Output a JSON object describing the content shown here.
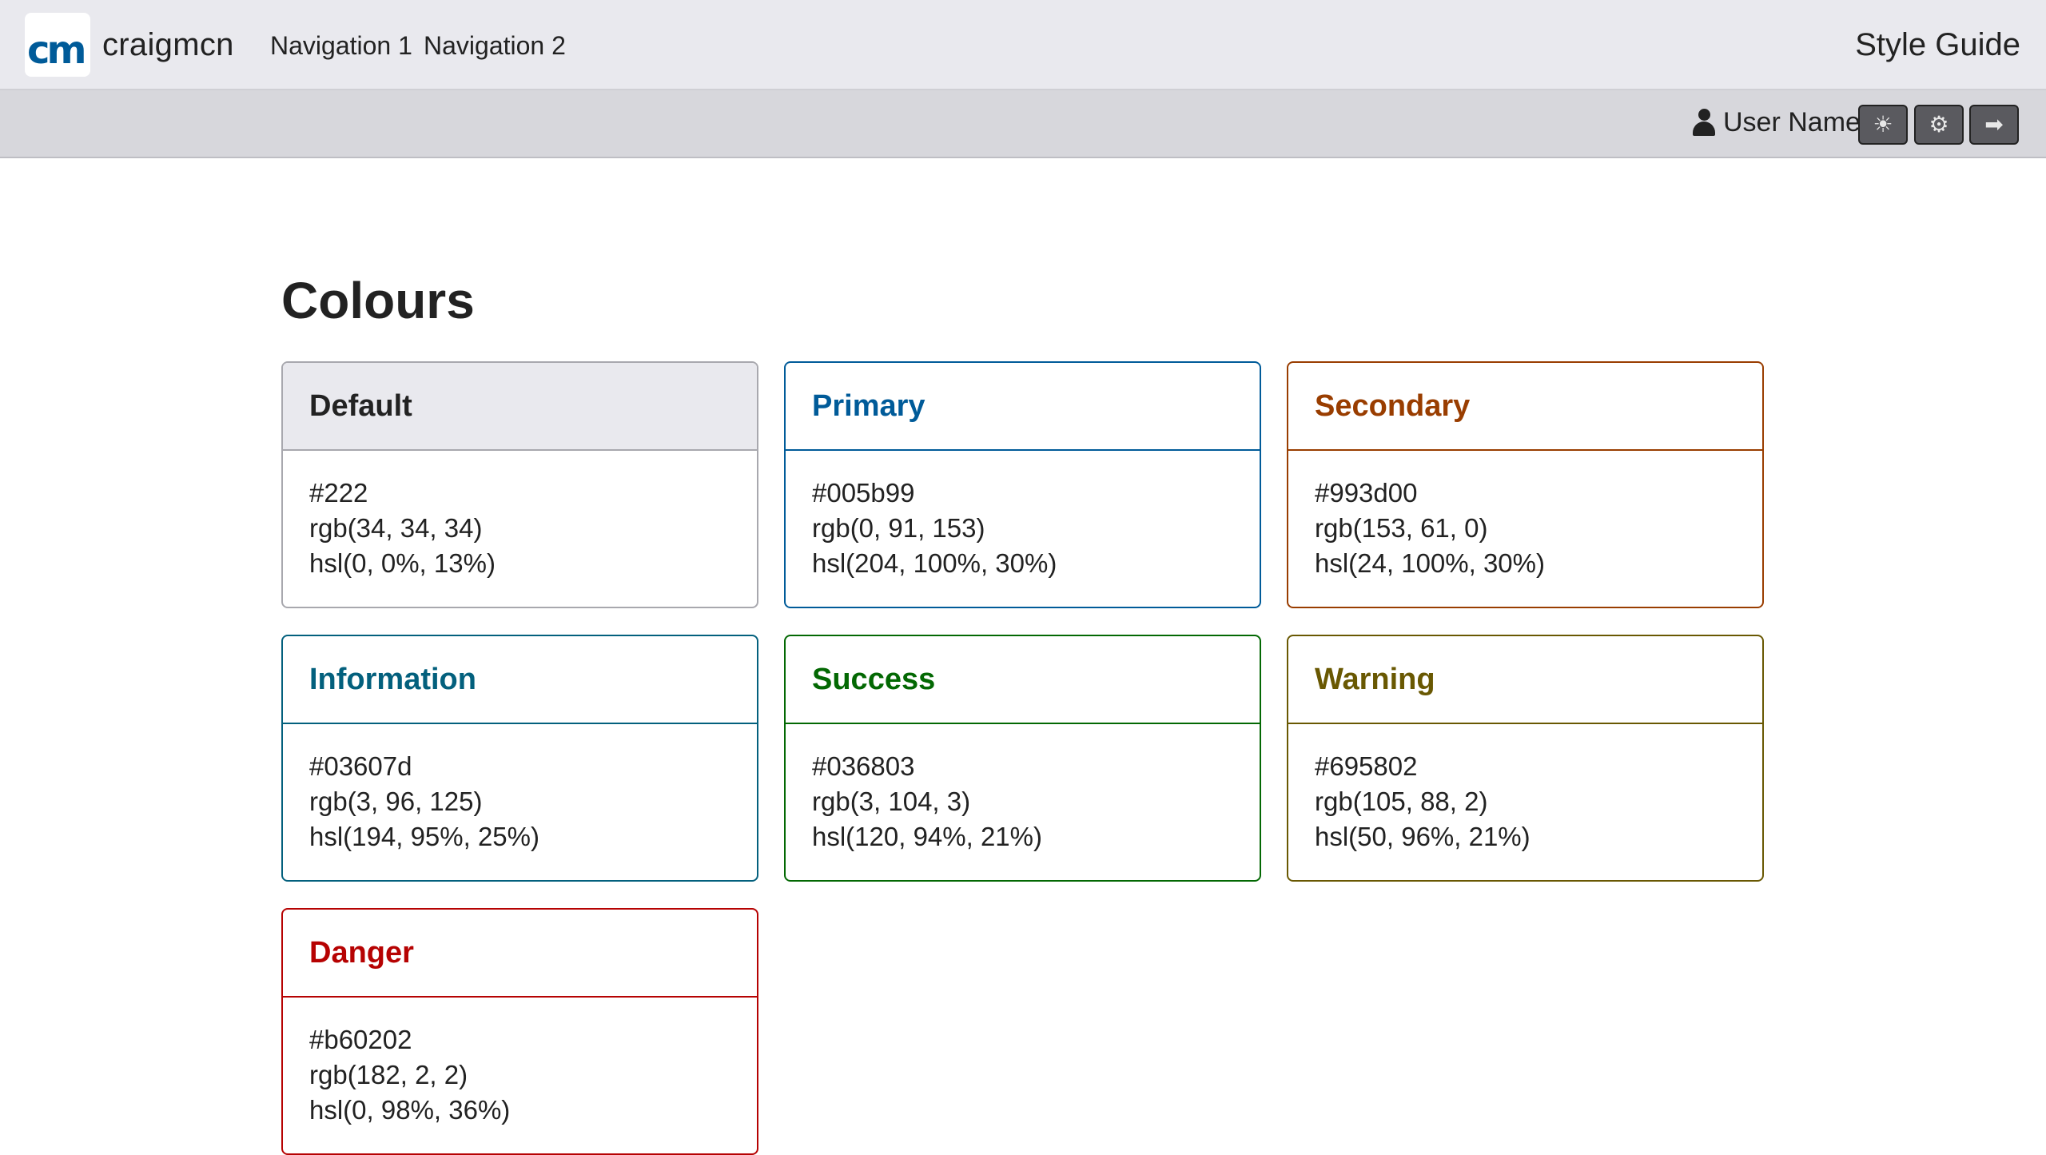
{
  "header": {
    "logo_text": "cm",
    "brand": "craigmcn",
    "nav": [
      "Navigation 1",
      "Navigation 2"
    ],
    "app_title": "Style Guide"
  },
  "subbar": {
    "user_icon": "user-icon",
    "user_name": "User Name",
    "buttons": [
      {
        "name": "theme-toggle-button",
        "icon": "sun-icon",
        "glyph": "☀"
      },
      {
        "name": "settings-button",
        "icon": "gear-icon",
        "glyph": "⚙"
      },
      {
        "name": "logout-button",
        "icon": "sign-out-icon",
        "glyph": "➡"
      }
    ]
  },
  "main": {
    "title": "Colours",
    "cards": [
      {
        "name": "Default",
        "color": "#222222",
        "hex": "#222",
        "rgb": "rgb(34, 34, 34)",
        "hsl": "hsl(0, 0%, 13%)"
      },
      {
        "name": "Primary",
        "color": "#005b99",
        "hex": "#005b99",
        "rgb": "rgb(0, 91, 153)",
        "hsl": "hsl(204, 100%, 30%)"
      },
      {
        "name": "Secondary",
        "color": "#993d00",
        "hex": "#993d00",
        "rgb": "rgb(153, 61, 0)",
        "hsl": "hsl(24, 100%, 30%)"
      },
      {
        "name": "Information",
        "color": "#03607d",
        "hex": "#03607d",
        "rgb": "rgb(3, 96, 125)",
        "hsl": "hsl(194, 95%, 25%)"
      },
      {
        "name": "Success",
        "color": "#036803",
        "hex": "#036803",
        "rgb": "rgb(3, 104, 3)",
        "hsl": "hsl(120, 94%, 21%)"
      },
      {
        "name": "Warning",
        "color": "#695802",
        "hex": "#695802",
        "rgb": "rgb(105, 88, 2)",
        "hsl": "hsl(50, 96%, 21%)"
      },
      {
        "name": "Danger",
        "color": "#b60202",
        "hex": "#b60202",
        "rgb": "rgb(182, 2, 2)",
        "hsl": "hsl(0, 98%, 36%)"
      }
    ]
  }
}
